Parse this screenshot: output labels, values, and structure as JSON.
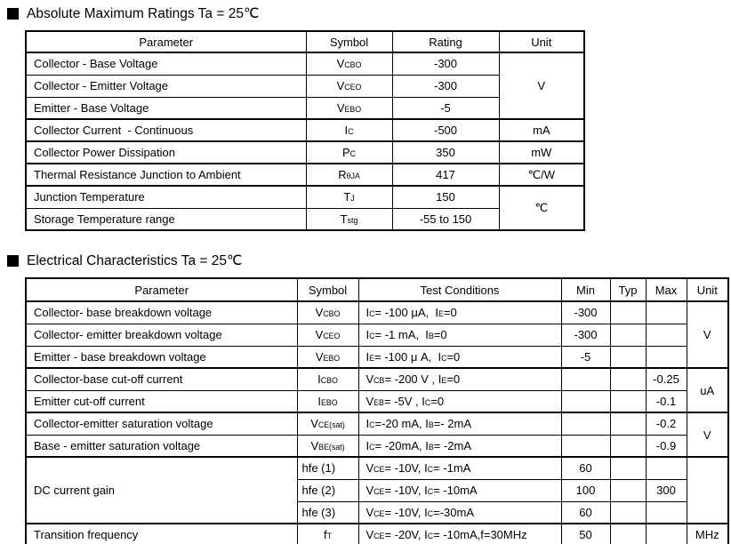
{
  "page": {
    "background": "#ffffff",
    "text_color": "#000000",
    "border_color": "#000000"
  },
  "abs_max": {
    "title": "Absolute Maximum Ratings Ta = 25℃",
    "headers": {
      "parameter": "Parameter",
      "symbol": "Symbol",
      "rating": "Rating",
      "unit": "Unit"
    },
    "rows": [
      {
        "parameter": "Collector - Base Voltage",
        "symbol": "V~CBO~",
        "rating": "-300",
        "unit": "V"
      },
      {
        "parameter": "Collector - Emitter Voltage",
        "symbol": "V~CEO~",
        "rating": "-300"
      },
      {
        "parameter": "Emitter - Base Voltage",
        "symbol": "V~EBO~",
        "rating": "-5"
      },
      {
        "parameter": "Collector Current  - Continuous",
        "symbol": "I~C~",
        "rating": "-500",
        "unit": "mA"
      },
      {
        "parameter": "Collector Power Dissipation",
        "symbol": "P~C~",
        "rating": "350",
        "unit": "mW"
      },
      {
        "parameter": "Thermal Resistance Junction to Ambient",
        "symbol": "R~θJA~",
        "rating": "417",
        "unit": "℃/W"
      },
      {
        "parameter": "Junction Temperature",
        "symbol": "T~J~",
        "rating": "150",
        "unit": "℃"
      },
      {
        "parameter": "Storage Temperature range",
        "symbol": "T~stg~",
        "rating": "-55 to 150"
      }
    ]
  },
  "elec": {
    "title": "Electrical Characteristics Ta = 25℃",
    "headers": {
      "parameter": "Parameter",
      "symbol": "Symbol",
      "test_conditions": "Test Conditions",
      "min": "Min",
      "typ": "Typ",
      "max": "Max",
      "unit": "Unit"
    },
    "rows": [
      {
        "parameter": "Collector- base breakdown voltage",
        "symbol": "V~CBO~",
        "conditions": "I~C~= -100 μA,  I~E~=0",
        "min": "-300",
        "typ": "",
        "max": "",
        "unit": "V"
      },
      {
        "parameter": "Collector- emitter breakdown voltage",
        "symbol": "V~CEO~",
        "conditions": "I~C~= -1 mA,  I~B~=0",
        "min": "-300",
        "typ": "",
        "max": ""
      },
      {
        "parameter": "Emitter - base breakdown voltage",
        "symbol": "V~EBO~",
        "conditions": "I~E~= -100 μ A,  I~C~=0",
        "min": "-5",
        "typ": "",
        "max": ""
      },
      {
        "parameter": "Collector-base cut-off current",
        "symbol": "I~CBO~",
        "conditions": "V~CB~= -200 V , I~E~=0",
        "min": "",
        "typ": "",
        "max": "-0.25",
        "unit": "uA"
      },
      {
        "parameter": "Emitter cut-off current",
        "symbol": "I~EBO~",
        "conditions": "V~EB~= -5V , I~C~=0",
        "min": "",
        "typ": "",
        "max": "-0.1"
      },
      {
        "parameter": "Collector-emitter saturation voltage",
        "symbol": "V~CE(sat)~",
        "conditions": "I~C~=-20 mA, I~B~=- 2mA",
        "min": "",
        "typ": "",
        "max": "-0.2",
        "unit": "V"
      },
      {
        "parameter": "Base - emitter saturation voltage",
        "symbol": "V~BE(sat)~",
        "conditions": "I~C~= -20mA, I~B~= -2mA",
        "min": "",
        "typ": "",
        "max": "-0.9"
      },
      {
        "parameter": "DC current gain",
        "symbol": "hfe (1)",
        "conditions": "V~CE~= -10V, I~C~= -1mA",
        "min": "60",
        "typ": "",
        "max": "",
        "unit": ""
      },
      {
        "symbol": "hfe (2)",
        "conditions": "V~CE~= -10V, I~C~= -10mA",
        "min": "100",
        "typ": "",
        "max": "300"
      },
      {
        "symbol": "hfe (3)",
        "conditions": "V~CE~= -10V, I~C~=-30mA",
        "min": "60",
        "typ": "",
        "max": ""
      },
      {
        "parameter": "Transition frequency",
        "symbol": "f~T~",
        "conditions": "V~CE~= -20V, I~C~= -10mA,f=30MHz",
        "min": "50",
        "typ": "",
        "max": "",
        "unit": "MHz"
      }
    ]
  }
}
